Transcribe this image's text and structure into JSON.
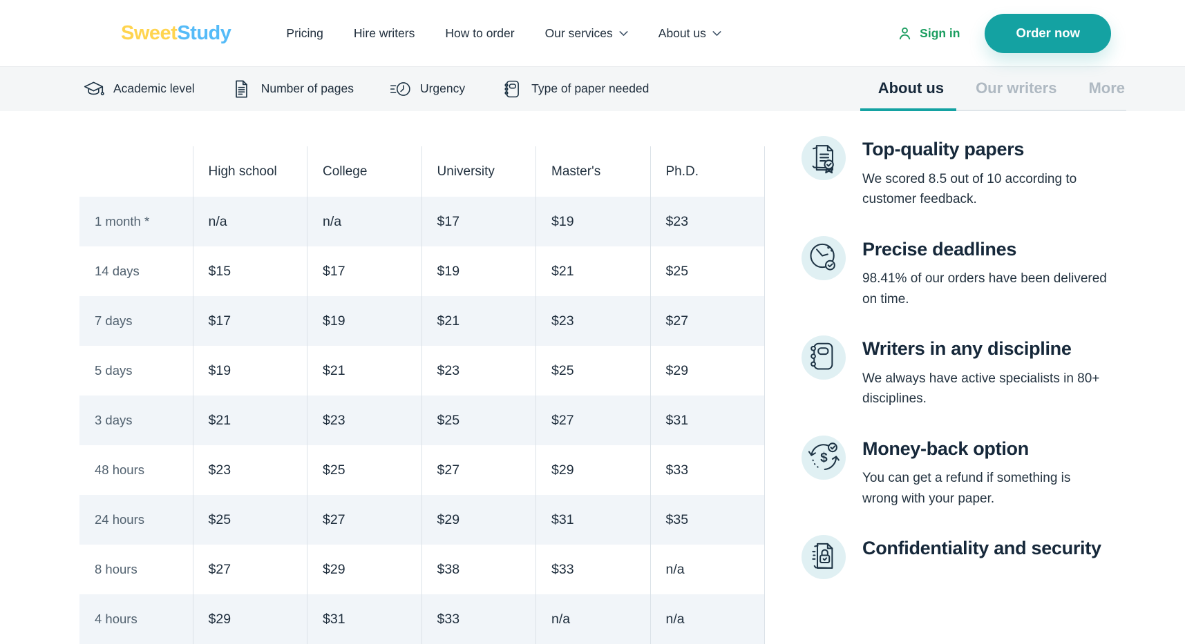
{
  "brand": {
    "first": "Sweet",
    "second": "Study"
  },
  "nav": {
    "items": [
      {
        "label": "Pricing",
        "dropdown": false
      },
      {
        "label": "Hire writers",
        "dropdown": false
      },
      {
        "label": "How to order",
        "dropdown": false
      },
      {
        "label": "Our services",
        "dropdown": true
      },
      {
        "label": "About us",
        "dropdown": true
      }
    ]
  },
  "header": {
    "sign_in": "Sign in",
    "order_now": "Order now"
  },
  "order_options": [
    {
      "icon": "graduation-cap-icon",
      "label": "Academic level"
    },
    {
      "icon": "document-icon",
      "label": "Number of pages"
    },
    {
      "icon": "urgency-clock-icon",
      "label": "Urgency"
    },
    {
      "icon": "notebook-icon",
      "label": "Type of paper needed"
    }
  ],
  "section_tabs": [
    {
      "label": "About us",
      "active": true
    },
    {
      "label": "Our writers",
      "active": false
    },
    {
      "label": "More",
      "active": false
    }
  ],
  "pricing_table": {
    "columns": [
      "High school",
      "College",
      "University",
      "Master's",
      "Ph.D."
    ],
    "rows": [
      {
        "label": "1 month *",
        "values": [
          "n/a",
          "n/a",
          "$17",
          "$19",
          "$23"
        ]
      },
      {
        "label": "14 days",
        "values": [
          "$15",
          "$17",
          "$19",
          "$21",
          "$25"
        ]
      },
      {
        "label": "7 days",
        "values": [
          "$17",
          "$19",
          "$21",
          "$23",
          "$27"
        ]
      },
      {
        "label": "5 days",
        "values": [
          "$19",
          "$21",
          "$23",
          "$25",
          "$29"
        ]
      },
      {
        "label": "3 days",
        "values": [
          "$21",
          "$23",
          "$25",
          "$27",
          "$31"
        ]
      },
      {
        "label": "48 hours",
        "values": [
          "$23",
          "$25",
          "$27",
          "$29",
          "$33"
        ]
      },
      {
        "label": "24 hours",
        "values": [
          "$25",
          "$27",
          "$29",
          "$31",
          "$35"
        ]
      },
      {
        "label": "8 hours",
        "values": [
          "$27",
          "$29",
          "$38",
          "$33",
          "n/a"
        ]
      },
      {
        "label": "4 hours",
        "values": [
          "$29",
          "$31",
          "$33",
          "n/a",
          "n/a"
        ]
      }
    ]
  },
  "features": [
    {
      "icon": "certificate-paper-icon",
      "title": "Top-quality papers",
      "description": "We scored 8.5 out of 10 according to customer feedback."
    },
    {
      "icon": "clock-check-icon",
      "title": "Precise deadlines",
      "description": "98.41% of our orders have been delivered on time."
    },
    {
      "icon": "notebook-rings-icon",
      "title": "Writers in any discipline",
      "description": "We always have active specialists in 80+ disciplines."
    },
    {
      "icon": "money-refund-icon",
      "title": "Money-back option",
      "description": "You can get a refund if something is wrong with your paper."
    },
    {
      "icon": "lock-document-icon",
      "title": "Confidentiality and security"
    }
  ],
  "colors": {
    "brand_yellow": "#FFD44F",
    "brand_blue": "#55BBF8",
    "teal": "#14A2A2",
    "green": "#1A9D5F",
    "navy": "#16283A",
    "table_stripe": "#F1F5F9",
    "icon_circle_bg": "#E0F0F3",
    "inactive_tab": "#AFB9C2"
  }
}
